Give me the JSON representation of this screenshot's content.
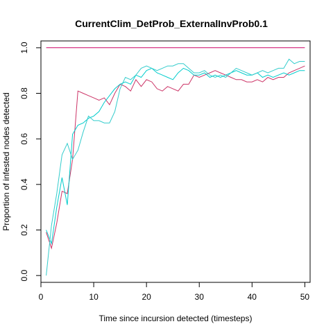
{
  "chart_data": {
    "type": "line",
    "title": "CurrentClim_DetProb_ExternalInvProb0.1",
    "xlabel": "Time since incursion detected (timesteps)",
    "ylabel": "Proportion of infested nodes detected",
    "xlim": [
      0,
      51
    ],
    "ylim": [
      -0.03,
      1.03
    ],
    "xticks": [
      0,
      10,
      20,
      30,
      40,
      50
    ],
    "yticks": [
      0.0,
      0.2,
      0.4,
      0.6,
      0.8,
      1.0
    ],
    "xtick_labels": [
      "0",
      "10",
      "20",
      "30",
      "40",
      "50"
    ],
    "ytick_labels": [
      "0.0",
      "0.2",
      "0.4",
      "0.6",
      "0.8",
      "1.0"
    ],
    "grid": false,
    "series": [
      {
        "color": "#cc0066",
        "x": [
          1,
          50
        ],
        "y": [
          1.0,
          1.0
        ]
      },
      {
        "color": "#cc3366",
        "x": [
          1,
          2,
          3,
          4,
          5,
          6,
          7,
          8,
          9,
          10,
          11,
          12,
          13,
          14,
          15,
          16,
          17,
          18,
          19,
          20,
          21,
          22,
          23,
          24,
          25,
          26,
          27,
          28,
          29,
          30,
          31,
          32,
          33,
          34,
          35,
          36,
          37,
          38,
          39,
          40,
          41,
          42,
          43,
          44,
          45,
          46,
          47,
          48,
          49,
          50
        ],
        "y": [
          0.19,
          0.12,
          0.23,
          0.37,
          0.36,
          0.51,
          0.81,
          0.8,
          0.79,
          0.78,
          0.77,
          0.78,
          0.75,
          0.8,
          0.84,
          0.83,
          0.81,
          0.86,
          0.83,
          0.86,
          0.85,
          0.82,
          0.81,
          0.83,
          0.82,
          0.81,
          0.84,
          0.84,
          0.88,
          0.87,
          0.88,
          0.89,
          0.9,
          0.89,
          0.88,
          0.87,
          0.86,
          0.86,
          0.85,
          0.85,
          0.86,
          0.85,
          0.87,
          0.86,
          0.87,
          0.87,
          0.89,
          0.9,
          0.91,
          0.92
        ]
      },
      {
        "color": "#00cccc",
        "x": [
          1,
          2,
          3,
          4,
          5,
          6,
          7,
          8,
          9,
          10,
          11,
          12,
          13,
          14,
          15,
          16,
          17,
          18,
          19,
          20,
          21,
          22,
          23,
          24,
          25,
          26,
          27,
          28,
          29,
          30,
          31,
          32,
          33,
          34,
          35,
          36,
          37,
          38,
          39,
          40,
          41,
          42,
          43,
          44,
          45,
          46,
          47,
          48,
          49,
          50
        ],
        "y": [
          0.2,
          0.14,
          0.3,
          0.43,
          0.31,
          0.62,
          0.66,
          0.67,
          0.69,
          0.7,
          0.72,
          0.76,
          0.79,
          0.82,
          0.84,
          0.85,
          0.84,
          0.88,
          0.87,
          0.9,
          0.91,
          0.89,
          0.88,
          0.87,
          0.86,
          0.89,
          0.91,
          0.9,
          0.88,
          0.88,
          0.89,
          0.87,
          0.88,
          0.87,
          0.88,
          0.89,
          0.9,
          0.89,
          0.88,
          0.88,
          0.89,
          0.87,
          0.88,
          0.87,
          0.88,
          0.89,
          0.88,
          0.89,
          0.9,
          0.9
        ]
      },
      {
        "color": "#33cccc",
        "x": [
          1,
          2,
          3,
          4,
          5,
          6,
          7,
          8,
          9,
          10,
          11,
          12,
          13,
          14,
          15,
          16,
          17,
          18,
          19,
          20,
          21,
          22,
          23,
          24,
          25,
          26,
          27,
          28,
          29,
          30,
          31,
          32,
          33,
          34,
          35,
          36,
          37,
          38,
          39,
          40,
          41,
          42,
          43,
          44,
          45,
          46,
          47,
          48,
          49,
          50
        ],
        "y": [
          0.0,
          0.22,
          0.36,
          0.53,
          0.58,
          0.51,
          0.55,
          0.63,
          0.7,
          0.68,
          0.68,
          0.67,
          0.67,
          0.72,
          0.82,
          0.87,
          0.86,
          0.88,
          0.91,
          0.92,
          0.91,
          0.9,
          0.91,
          0.92,
          0.92,
          0.93,
          0.93,
          0.91,
          0.89,
          0.89,
          0.9,
          0.88,
          0.87,
          0.88,
          0.87,
          0.89,
          0.91,
          0.9,
          0.89,
          0.88,
          0.89,
          0.9,
          0.89,
          0.9,
          0.91,
          0.91,
          0.95,
          0.93,
          0.94,
          0.94
        ]
      }
    ]
  }
}
